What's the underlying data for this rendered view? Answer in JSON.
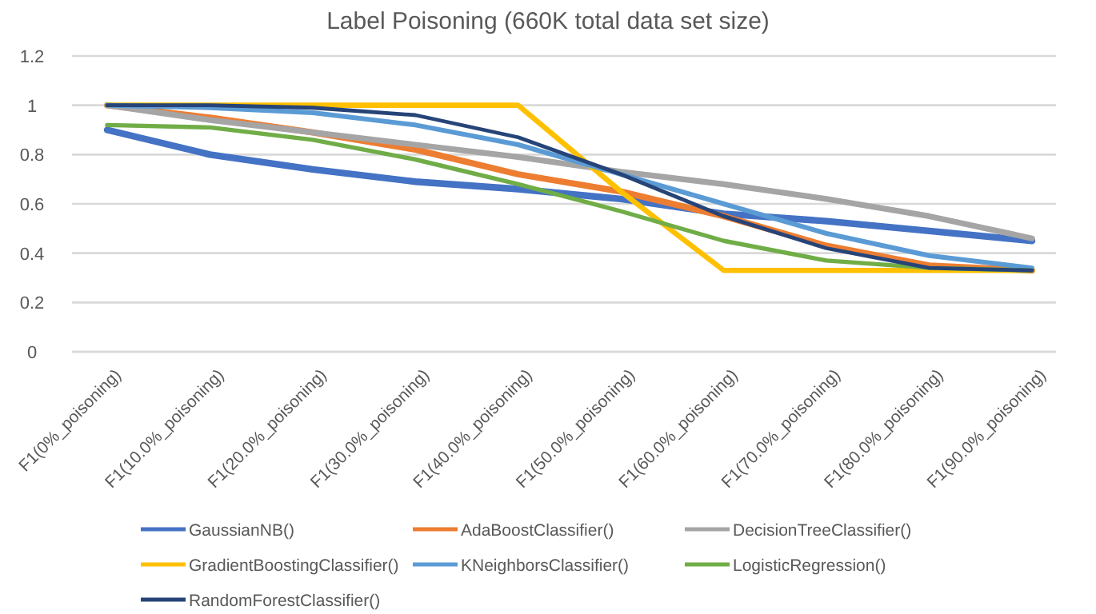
{
  "chart_data": {
    "type": "line",
    "title": "Label Poisoning (660K total data set size)",
    "categories": [
      "F1(0%_poisoning)",
      "F1(10.0%_poisoning)",
      "F1(20.0%_poisoning)",
      "F1(30.0%_poisoning)",
      "F1(40.0%_poisoning)",
      "F1(50.0%_poisoning)",
      "F1(60.0%_poisoning)",
      "F1(70.0%_poisoning)",
      "F1(80.0%_poisoning)",
      "F1(90.0%_poisoning)"
    ],
    "series": [
      {
        "name": "GaussianNB()",
        "color": "#4472c4",
        "values": [
          0.9,
          0.8,
          0.74,
          0.69,
          0.66,
          0.62,
          0.56,
          0.53,
          0.49,
          0.45
        ]
      },
      {
        "name": "AdaBoostClassifier()",
        "color": "#ed7d31",
        "values": [
          1,
          0.95,
          0.89,
          0.82,
          0.72,
          0.65,
          0.55,
          0.43,
          0.35,
          0.33
        ]
      },
      {
        "name": "DecisionTreeClassifier()",
        "color": "#a5a5a5",
        "values": [
          1,
          0.94,
          0.89,
          0.84,
          0.79,
          0.73,
          0.68,
          0.62,
          0.55,
          0.46
        ]
      },
      {
        "name": "GradientBoostingClassifier()",
        "color": "#ffc000",
        "values": [
          1,
          1,
          1,
          1,
          1,
          0.65,
          0.33,
          0.33,
          0.33,
          0.33
        ]
      },
      {
        "name": "KNeighborsClassifier()",
        "color": "#5b9bd5",
        "values": [
          1,
          0.99,
          0.97,
          0.92,
          0.84,
          0.72,
          0.6,
          0.48,
          0.39,
          0.34
        ]
      },
      {
        "name": "LogisticRegression()",
        "color": "#70ad47",
        "values": [
          0.92,
          0.91,
          0.86,
          0.78,
          0.68,
          0.57,
          0.45,
          0.37,
          0.34,
          0.33
        ]
      },
      {
        "name": "RandomForestClassifier()",
        "color": "#264478",
        "values": [
          1,
          1,
          0.99,
          0.96,
          0.87,
          0.72,
          0.55,
          0.42,
          0.34,
          0.33
        ]
      }
    ],
    "ylim": [
      0,
      1.2
    ],
    "yticks": [
      0,
      0.2,
      0.4,
      0.6,
      0.8,
      1,
      1.2
    ],
    "grid": "y",
    "legend": "bottom",
    "marker": "none",
    "line_style": "solid"
  }
}
